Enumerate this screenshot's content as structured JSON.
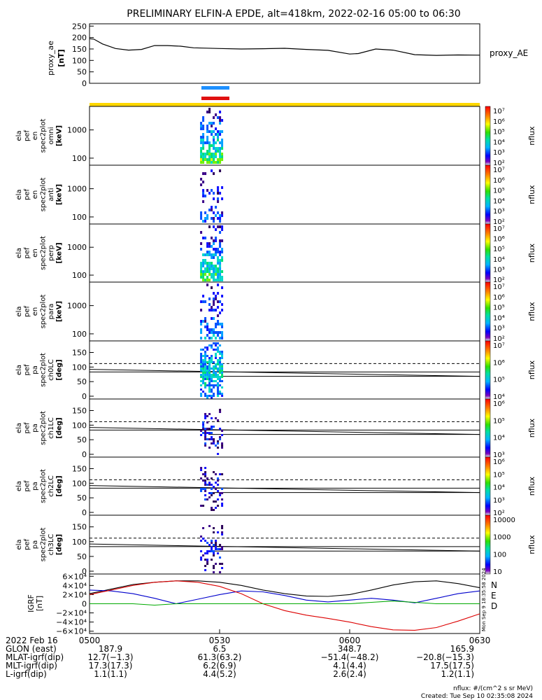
{
  "title": "PRELIMINARY ELFIN-A EPDE, alt=418km, 2022-02-16 05:00 to 06:30",
  "colors": {
    "bar_blue": "#1e90ff",
    "bar_red": "#e01010",
    "bar_yellow": "#ffd700",
    "north": "#0000cc",
    "east": "#00aa00",
    "down": "#dd0000"
  },
  "chart_data": [
    {
      "type": "line",
      "id": "proxy_ae",
      "ylabel_lines": [
        "proxy_ae",
        "[nT]"
      ],
      "legend": "proxy_AE",
      "yticks": [
        "250",
        "200",
        "150",
        "100",
        "50",
        "0"
      ],
      "ylim": [
        0,
        260
      ],
      "xlim": [
        0,
        90
      ],
      "x": [
        0,
        1,
        3,
        6,
        9,
        12,
        15,
        18,
        21,
        24,
        30,
        35,
        40,
        45,
        50,
        55,
        60,
        62,
        66,
        70,
        75,
        80,
        85,
        90
      ],
      "y": [
        195,
        193,
        172,
        152,
        145,
        148,
        165,
        165,
        162,
        155,
        152,
        150,
        151,
        153,
        148,
        144,
        128,
        130,
        150,
        145,
        125,
        122,
        124,
        123
      ]
    },
    {
      "type": "heatmap",
      "id": "en_omni",
      "ylabel_lines": [
        "ela",
        "pef",
        "en",
        "spec2plot",
        "omni",
        "[keV]"
      ],
      "yticks": [
        "1000",
        "100"
      ],
      "colorbar_label": "nflux",
      "colorbar_ticks": [
        "10⁷",
        "10⁶",
        "10⁵",
        "10⁴",
        "10³",
        "10²"
      ]
    },
    {
      "type": "heatmap",
      "id": "en_anti",
      "ylabel_lines": [
        "ela",
        "pef",
        "en",
        "spec2plot",
        "anti",
        "[keV]"
      ],
      "yticks": [
        "1000",
        "100"
      ],
      "colorbar_label": "nflux",
      "colorbar_ticks": [
        "10⁷",
        "10⁶",
        "10⁵",
        "10⁴",
        "10³",
        "10²"
      ]
    },
    {
      "type": "heatmap",
      "id": "en_perp",
      "ylabel_lines": [
        "ela",
        "pef",
        "en",
        "spec2plot",
        "perp",
        "[keV]"
      ],
      "yticks": [
        "1000",
        "100"
      ],
      "colorbar_label": "nflux",
      "colorbar_ticks": [
        "10⁷",
        "10⁶",
        "10⁵",
        "10⁴",
        "10³",
        "10²"
      ]
    },
    {
      "type": "heatmap",
      "id": "en_para",
      "ylabel_lines": [
        "ela",
        "pef",
        "en",
        "spec2plot",
        "para",
        "[keV]"
      ],
      "yticks": [
        "1000",
        "100"
      ],
      "colorbar_label": "nflux",
      "colorbar_ticks": [
        "10⁷",
        "10⁶",
        "10⁵",
        "10⁴",
        "10³",
        "10²"
      ]
    },
    {
      "type": "heatmap",
      "id": "pa_ch0",
      "ylabel_lines": [
        "ela",
        "pef",
        "pa",
        "spec2plot",
        "ch0LC",
        "[deg]"
      ],
      "yticks": [
        "150",
        "100",
        "50",
        "0"
      ],
      "ylim": [
        0,
        180
      ],
      "colorbar_label": "nflux",
      "colorbar_ticks": [
        "10⁷",
        "10⁶",
        "10⁵",
        "10⁴"
      ],
      "loss_cone": [
        92,
        68
      ],
      "anti_loss_cone": [
        88,
        112
      ]
    },
    {
      "type": "heatmap",
      "id": "pa_ch1",
      "ylabel_lines": [
        "ela",
        "pef",
        "pa",
        "spec2plot",
        "ch1LC",
        "[deg]"
      ],
      "yticks": [
        "150",
        "100",
        "50",
        "0"
      ],
      "ylim": [
        0,
        180
      ],
      "colorbar_label": "nflux",
      "colorbar_ticks": [
        "10⁶",
        "10⁵",
        "10⁴",
        "10³"
      ],
      "loss_cone": [
        92,
        68
      ],
      "anti_loss_cone": [
        88,
        112
      ]
    },
    {
      "type": "heatmap",
      "id": "pa_ch2",
      "ylabel_lines": [
        "ela",
        "pef",
        "pa",
        "spec2plot",
        "ch2LC",
        "[deg]"
      ],
      "yticks": [
        "150",
        "100",
        "50",
        "0"
      ],
      "ylim": [
        0,
        180
      ],
      "colorbar_label": "nflux",
      "colorbar_ticks": [
        "10⁶",
        "10⁵",
        "10⁴",
        "10³",
        "10²"
      ],
      "loss_cone": [
        92,
        68
      ],
      "anti_loss_cone": [
        88,
        112
      ]
    },
    {
      "type": "heatmap",
      "id": "pa_ch3",
      "ylabel_lines": [
        "ela",
        "pef",
        "pa",
        "spec2plot",
        "ch3LC",
        "[deg]"
      ],
      "yticks": [
        "150",
        "100",
        "50",
        "0"
      ],
      "ylim": [
        0,
        180
      ],
      "colorbar_label": "nflux",
      "colorbar_ticks": [
        "10000",
        "1000",
        "100",
        "10"
      ],
      "loss_cone": [
        92,
        68
      ],
      "anti_loss_cone": [
        88,
        112
      ]
    },
    {
      "type": "line",
      "id": "igrf",
      "ylabel_lines": [
        "IGRF",
        "[nT]"
      ],
      "ylim": [
        -65000,
        65000
      ],
      "xlim": [
        0,
        90
      ],
      "yticks": [
        "6×10⁴",
        "4×10⁴",
        "2×10⁴",
        "0",
        "−2×10⁴",
        "−4×10⁴",
        "−6×10⁴"
      ],
      "yticks_values": [
        60000,
        40000,
        20000,
        0,
        -20000,
        -40000,
        -60000
      ],
      "series": [
        {
          "name": "N",
          "color": "#000000",
          "x": [
            0,
            5,
            10,
            15,
            20,
            25,
            30,
            35,
            40,
            45,
            50,
            55,
            60,
            65,
            70,
            75,
            80,
            85,
            90
          ],
          "y": [
            22000,
            32000,
            42000,
            47000,
            50000,
            50000,
            47000,
            40000,
            30000,
            22000,
            17000,
            16000,
            20000,
            30000,
            41000,
            48000,
            50000,
            44000,
            35000
          ]
        },
        {
          "name": "E",
          "color": "#0000cc",
          "x": [
            0,
            5,
            10,
            15,
            20,
            25,
            30,
            35,
            40,
            45,
            50,
            55,
            60,
            65,
            70,
            75,
            80,
            85,
            90
          ],
          "y": [
            30000,
            28000,
            22000,
            12000,
            0,
            10000,
            20000,
            28000,
            26000,
            18000,
            8000,
            4000,
            8000,
            12000,
            8000,
            2000,
            12000,
            22000,
            28000
          ]
        },
        {
          "name": "D",
          "color": "#dd0000",
          "x": [
            0,
            5,
            10,
            15,
            20,
            25,
            30,
            35,
            40,
            45,
            50,
            55,
            60,
            65,
            70,
            75,
            80,
            85,
            90
          ],
          "y": [
            20000,
            30000,
            40000,
            47000,
            50000,
            47000,
            38000,
            22000,
            0,
            -15000,
            -25000,
            -32000,
            -40000,
            -50000,
            -57000,
            -58000,
            -52000,
            -38000,
            -22000
          ]
        },
        {
          "name": "G",
          "color": "#00aa00",
          "x": [
            0,
            10,
            15,
            20,
            30,
            40,
            50,
            60,
            65,
            70,
            75,
            80,
            85,
            90
          ],
          "y": [
            0,
            0,
            -3000,
            0,
            0,
            0,
            0,
            0,
            3000,
            6000,
            3000,
            0,
            0,
            0
          ]
        }
      ],
      "legend": [
        "N",
        "E",
        "D"
      ],
      "side_text": "Mon Sep 9 18:35:58 2024"
    }
  ],
  "bottom_axis": {
    "tick_labels": [
      "0500",
      "0530",
      "0600",
      "0630"
    ],
    "row_labels": [
      "2022 Feb 16",
      "GLON (east)",
      "MLAT-igrf(dip)",
      "MLT-igrf(dip)",
      "L-igrf(dip)"
    ],
    "columns": [
      [
        "187.9",
        "12.7(−1.3)",
        "17.3(17.3)",
        "1.1(1.1)"
      ],
      [
        "6.5",
        "61.3(63.2)",
        "6.2(6.9)",
        "4.4(5.2)"
      ],
      [
        "348.7",
        "−51.4(−48.2)",
        "4.1(4.4)",
        "2.6(2.4)"
      ],
      [
        "165.9",
        "−20.8(−15.3)",
        "17.5(17.5)",
        "1.2(1.1)"
      ]
    ]
  },
  "footer": {
    "units": "nflux: #/(cm^2 s sr MeV)",
    "created": "Created: Tue Sep 10 02:35:08 2024"
  }
}
